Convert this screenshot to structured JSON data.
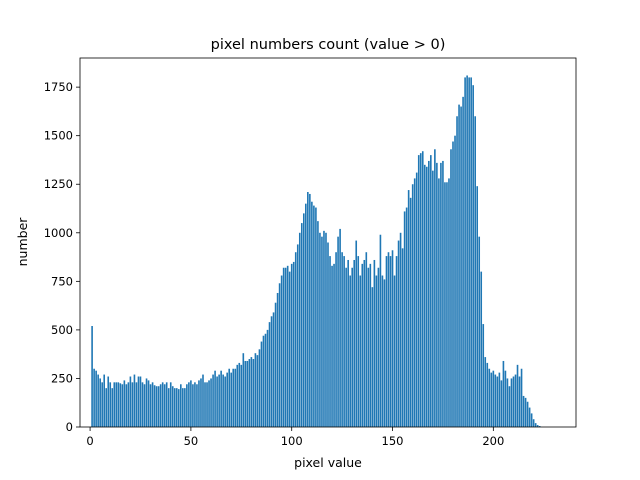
{
  "chart_data": {
    "type": "bar",
    "title": "pixel numbers count (value > 0)",
    "xlabel": "pixel value",
    "ylabel": "number",
    "xlim": [
      -5,
      241
    ],
    "ylim": [
      0,
      1900
    ],
    "xticks": [
      0,
      50,
      100,
      150,
      200
    ],
    "yticks": [
      0,
      250,
      500,
      750,
      1000,
      1250,
      1500,
      1750
    ],
    "bar_color": "#1f77b4",
    "grid": false,
    "x_start": 1,
    "values": [
      520,
      300,
      290,
      270,
      250,
      230,
      270,
      200,
      260,
      230,
      200,
      230,
      230,
      230,
      225,
      220,
      240,
      220,
      230,
      260,
      230,
      270,
      230,
      260,
      260,
      230,
      220,
      250,
      240,
      220,
      230,
      215,
      210,
      210,
      220,
      230,
      220,
      230,
      200,
      230,
      210,
      200,
      200,
      195,
      220,
      200,
      200,
      220,
      230,
      240,
      220,
      230,
      220,
      240,
      250,
      270,
      230,
      230,
      240,
      250,
      270,
      290,
      260,
      270,
      290,
      270,
      260,
      280,
      300,
      280,
      300,
      300,
      320,
      330,
      320,
      380,
      340,
      340,
      350,
      360,
      350,
      380,
      370,
      400,
      440,
      470,
      480,
      500,
      540,
      570,
      590,
      640,
      690,
      740,
      780,
      820,
      820,
      830,
      800,
      840,
      850,
      900,
      940,
      1000,
      1050,
      1100,
      1150,
      1210,
      1200,
      1160,
      1140,
      1130,
      1060,
      1000,
      980,
      1010,
      1000,
      950,
      880,
      830,
      840,
      900,
      980,
      1020,
      900,
      880,
      820,
      860,
      780,
      820,
      860,
      960,
      880,
      780,
      840,
      860,
      900,
      820,
      840,
      720,
      860,
      780,
      820,
      990,
      780,
      760,
      880,
      900,
      880,
      910,
      780,
      880,
      960,
      1000,
      920,
      1110,
      1130,
      1220,
      1180,
      1250,
      1280,
      1310,
      1400,
      1410,
      1420,
      1350,
      1340,
      1370,
      1400,
      1320,
      1430,
      1360,
      1280,
      1360,
      1370,
      1260,
      1260,
      1280,
      1430,
      1470,
      1500,
      1600,
      1660,
      1650,
      1700,
      1800,
      1810,
      1800,
      1800,
      1760,
      1600,
      1240,
      980,
      800,
      530,
      360,
      330,
      300,
      280,
      290,
      270,
      260,
      280,
      240,
      340,
      290,
      250,
      210,
      250,
      260,
      270,
      320,
      260,
      300,
      160,
      150,
      130,
      100,
      70,
      40,
      20,
      10,
      5
    ]
  }
}
